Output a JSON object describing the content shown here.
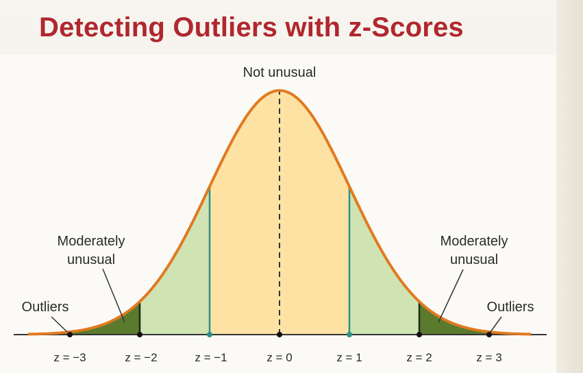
{
  "title": "Detecting Outliers with z-Scores",
  "labels": {
    "center": "Not unusual",
    "moderate_left_line1": "Moderately",
    "moderate_left_line2": "unusual",
    "moderate_right_line1": "Moderately",
    "moderate_right_line2": "unusual",
    "outliers_left": "Outliers",
    "outliers_right": "Outliers"
  },
  "ticks": [
    "z = −3",
    "z = −2",
    "z = −1",
    "z = 0",
    "z = 1",
    "z = 2",
    "z = 3"
  ],
  "colors": {
    "title": "#b0272f",
    "curve": "#e07a1f",
    "not_unusual_fill": "#fde2a4",
    "moderate_fill": "#cfe3b3",
    "outlier_fill": "#5a7a2e",
    "inner_line": "#2f8f8a",
    "axis": "#333333"
  }
}
